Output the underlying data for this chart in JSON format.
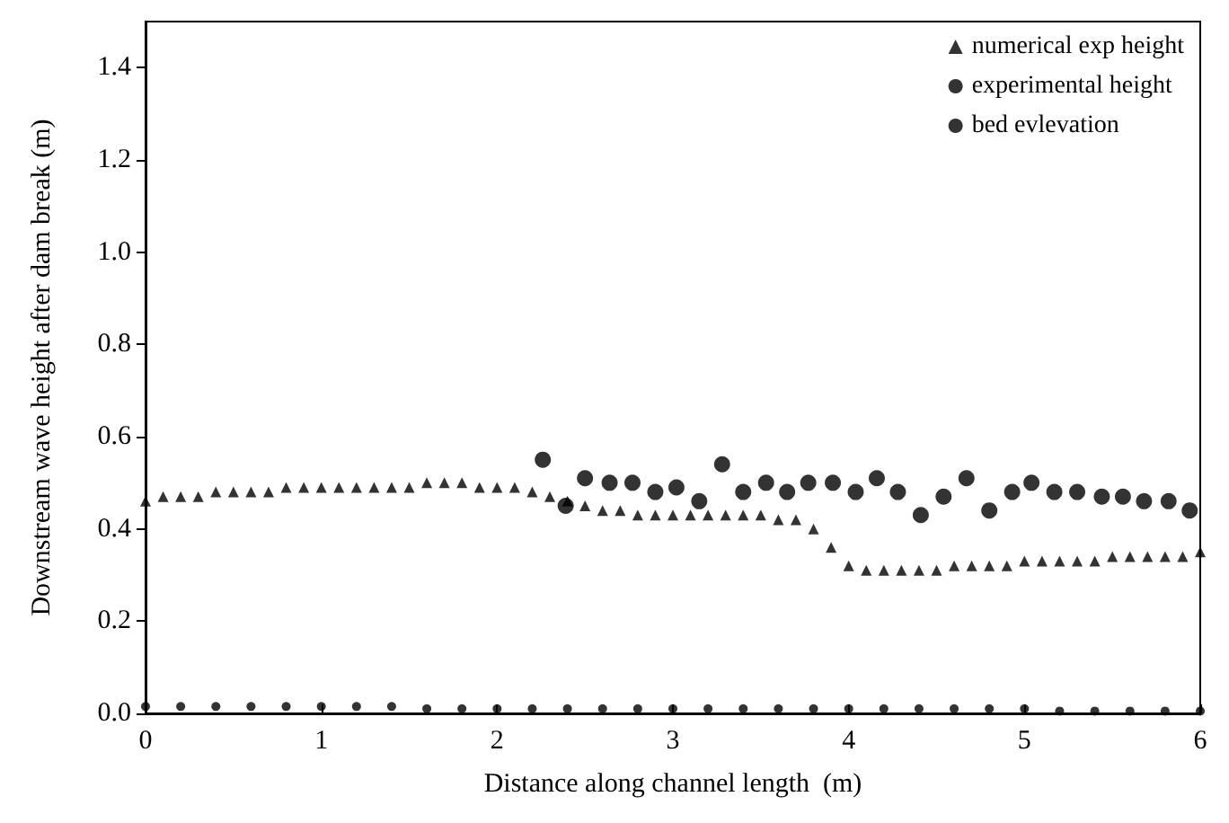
{
  "chart_data": {
    "type": "scatter",
    "xlabel": "Distance along channel length  (m)",
    "ylabel": "Downstream wave height after dam break (m)",
    "xlim": [
      0,
      6
    ],
    "xticks": [
      0,
      1,
      2,
      3,
      4,
      5,
      6
    ],
    "ylim": [
      0,
      1.5
    ],
    "yticks": [
      {
        "value": 0,
        "label": "0.0"
      },
      {
        "value": 0.2,
        "label": "0.2"
      },
      {
        "value": 0.4,
        "label": "0.4"
      },
      {
        "value": 0.6,
        "label": "0.6"
      },
      {
        "value": 0.8,
        "label": "0.8"
      },
      {
        "value": 1,
        "label": "1.0"
      },
      {
        "value": 1.2,
        "label": "1.2"
      },
      {
        "value": 1.4,
        "label": "1.4"
      }
    ],
    "grid": false,
    "legend": "top right",
    "series": [
      {
        "name": "numerical exp height",
        "color": "#000000",
        "marker": "triangle",
        "x": [
          0,
          0.1,
          0.2,
          0.3,
          0.4,
          0.5,
          0.6,
          0.7,
          0.8,
          0.9,
          1,
          1.1,
          1.2,
          1.3,
          1.4,
          1.5,
          1.6,
          1.7,
          1.8,
          1.9,
          2,
          2.1,
          2.2,
          2.3,
          2.4,
          2.5,
          2.6,
          2.7,
          2.8,
          2.9,
          3,
          3.1,
          3.2,
          3.3,
          3.4,
          3.5,
          3.6,
          3.7,
          3.8,
          3.9,
          4,
          4.1,
          4.2,
          4.3,
          4.4,
          4.5,
          4.6,
          4.7,
          4.8,
          4.9,
          5,
          5.1,
          5.2,
          5.3,
          5.4,
          5.5,
          5.6,
          5.7,
          5.8,
          5.9,
          6
        ],
        "values": [
          0.46,
          0.47,
          0.47,
          0.47,
          0.48,
          0.48,
          0.48,
          0.48,
          0.49,
          0.49,
          0.49,
          0.49,
          0.49,
          0.49,
          0.49,
          0.49,
          0.5,
          0.5,
          0.5,
          0.49,
          0.49,
          0.49,
          0.48,
          0.47,
          0.46,
          0.45,
          0.44,
          0.44,
          0.43,
          0.43,
          0.43,
          0.43,
          0.43,
          0.43,
          0.43,
          0.43,
          0.42,
          0.42,
          0.4,
          0.36,
          0.32,
          0.31,
          0.31,
          0.31,
          0.31,
          0.31,
          0.32,
          0.32,
          0.32,
          0.32,
          0.33,
          0.33,
          0.33,
          0.33,
          0.33,
          0.34,
          0.34,
          0.34,
          0.34,
          0.34,
          0.35
        ]
      },
      {
        "name": "experimental height",
        "color": "#000000",
        "marker": "circle",
        "x": [
          2.26,
          2.39,
          2.5,
          2.64,
          2.77,
          2.9,
          3.02,
          3.15,
          3.28,
          3.4,
          3.53,
          3.65,
          3.77,
          3.91,
          4.04,
          4.16,
          4.28,
          4.41,
          4.54,
          4.67,
          4.8,
          4.93,
          5.04,
          5.17,
          5.3,
          5.44,
          5.56,
          5.68,
          5.82,
          5.94
        ],
        "values": [
          0.55,
          0.45,
          0.51,
          0.5,
          0.5,
          0.48,
          0.49,
          0.46,
          0.54,
          0.48,
          0.5,
          0.48,
          0.5,
          0.5,
          0.48,
          0.51,
          0.48,
          0.43,
          0.47,
          0.51,
          0.44,
          0.48,
          0.5,
          0.48,
          0.48,
          0.47,
          0.47,
          0.46,
          0.46,
          0.44
        ]
      },
      {
        "name": "bed evlevation",
        "color": "#000000",
        "marker": "circle",
        "x": [
          0,
          0.2,
          0.4,
          0.6,
          0.8,
          1,
          1.2,
          1.4,
          1.6,
          1.8,
          2,
          2.2,
          2.4,
          2.6,
          2.8,
          3,
          3.2,
          3.4,
          3.6,
          3.8,
          4,
          4.2,
          4.4,
          4.6,
          4.8,
          5,
          5.2,
          5.4,
          5.6,
          5.8,
          6
        ],
        "values": [
          0.015,
          0.015,
          0.015,
          0.015,
          0.015,
          0.015,
          0.015,
          0.015,
          0.01,
          0.01,
          0.01,
          0.01,
          0.01,
          0.01,
          0.01,
          0.01,
          0.01,
          0.01,
          0.01,
          0.01,
          0.01,
          0.01,
          0.01,
          0.01,
          0.01,
          0.01,
          0.005,
          0.005,
          0.005,
          0.005,
          0.005
        ]
      }
    ]
  }
}
